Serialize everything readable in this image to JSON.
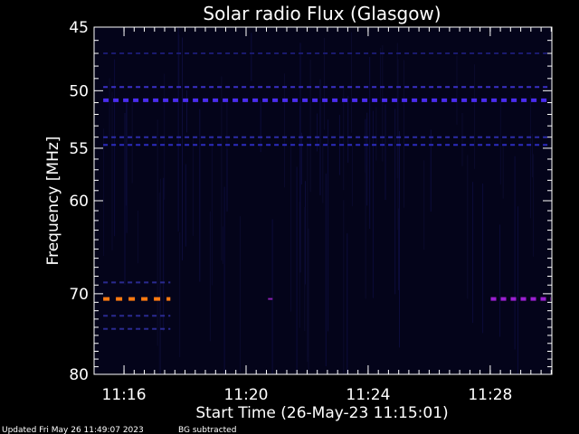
{
  "chart_data": {
    "type": "heatmap",
    "title": "Solar radio Flux (Glasgow)",
    "xlabel": "Start Time (26-May-23 11:15:01)",
    "ylabel": "Frequency [MHz]",
    "x_unit": "minutes after 11:15:01",
    "xlim": [
      0,
      15
    ],
    "ylim": [
      45,
      80
    ],
    "y_scale": "log",
    "x_ticks": [
      {
        "value": 0.98,
        "label": "11:16"
      },
      {
        "value": 4.98,
        "label": "11:20"
      },
      {
        "value": 8.98,
        "label": "11:24"
      },
      {
        "value": 12.98,
        "label": "11:28"
      }
    ],
    "y_ticks": [
      {
        "value": 45,
        "label": "45"
      },
      {
        "value": 50,
        "label": "50"
      },
      {
        "value": 55,
        "label": "55"
      },
      {
        "value": 60,
        "label": "60"
      },
      {
        "value": 70,
        "label": "70"
      },
      {
        "value": 80,
        "label": "80"
      }
    ],
    "features": [
      {
        "freq": 47,
        "t_start": 0.3,
        "t_end": 15,
        "intensity": "low",
        "color": "#1a1a6e"
      },
      {
        "freq": 49.7,
        "t_start": 0.3,
        "t_end": 15,
        "intensity": "medium",
        "color": "#3a30c8"
      },
      {
        "freq": 50.8,
        "t_start": 0.3,
        "t_end": 15,
        "intensity": "high",
        "color": "#4a2cf0"
      },
      {
        "freq": 54,
        "t_start": 0.3,
        "t_end": 15,
        "intensity": "medium",
        "color": "#2c2ca8"
      },
      {
        "freq": 54.7,
        "t_start": 0.3,
        "t_end": 15,
        "intensity": "medium",
        "color": "#2c2cc0"
      },
      {
        "freq": 68.7,
        "t_start": 0.3,
        "t_end": 2.5,
        "intensity": "low",
        "color": "#2a2a90"
      },
      {
        "freq": 70.6,
        "t_start": 0.3,
        "t_end": 2.5,
        "intensity": "very high",
        "color": "#ff7a10"
      },
      {
        "freq": 70.6,
        "t_start": 5.7,
        "t_end": 5.9,
        "intensity": "medium",
        "color": "#8a20b0"
      },
      {
        "freq": 70.6,
        "t_start": 13.0,
        "t_end": 15,
        "intensity": "high",
        "color": "#9a1fd0"
      },
      {
        "freq": 72.6,
        "t_start": 0.3,
        "t_end": 2.5,
        "intensity": "low",
        "color": "#2a2a90"
      },
      {
        "freq": 74.2,
        "t_start": 0.3,
        "t_end": 2.5,
        "intensity": "low",
        "color": "#2a2a90"
      }
    ]
  },
  "footer": {
    "updated": "Updated Fri May 26 11:49:07 2023",
    "note": "BG subtracted"
  },
  "colors": {
    "background": "#000000",
    "plot_background": "#04041a",
    "axis": "#ffffff"
  }
}
